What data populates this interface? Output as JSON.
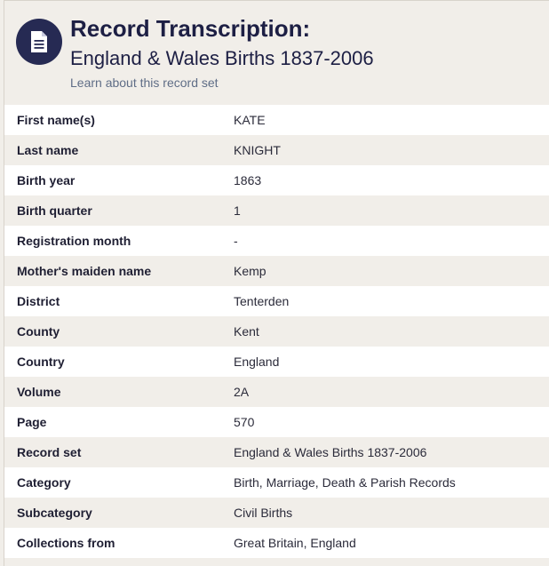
{
  "header": {
    "title": "Record Transcription:",
    "subtitle": "England & Wales Births 1837-2006",
    "learn_link": "Learn about this record set",
    "icon": "document-icon",
    "badge_color": "#262a53"
  },
  "rows": [
    {
      "label": "First name(s)",
      "value": "KATE"
    },
    {
      "label": "Last name",
      "value": "KNIGHT"
    },
    {
      "label": "Birth year",
      "value": "1863"
    },
    {
      "label": "Birth quarter",
      "value": "1"
    },
    {
      "label": "Registration month",
      "value": "-"
    },
    {
      "label": "Mother's maiden name",
      "value": "Kemp"
    },
    {
      "label": "District",
      "value": "Tenterden"
    },
    {
      "label": "County",
      "value": "Kent"
    },
    {
      "label": "Country",
      "value": "England"
    },
    {
      "label": "Volume",
      "value": "2A"
    },
    {
      "label": "Page",
      "value": "570"
    },
    {
      "label": "Record set",
      "value": "England & Wales Births 1837-2006"
    },
    {
      "label": "Category",
      "value": "Birth, Marriage, Death & Parish Records"
    },
    {
      "label": "Subcategory",
      "value": "Civil Births"
    },
    {
      "label": "Collections from",
      "value": "Great Britain, England"
    }
  ]
}
